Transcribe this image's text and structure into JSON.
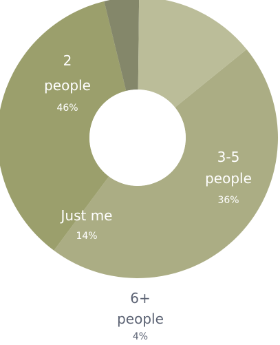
{
  "chart_data": {
    "type": "pie",
    "donut": true,
    "title": "",
    "slices": [
      {
        "label_lines": [
          "2",
          "people"
        ],
        "value": 46,
        "pct_text": "46%",
        "color": "#abad84"
      },
      {
        "label_lines": [
          "3-5",
          "people"
        ],
        "value": 36,
        "pct_text": "36%",
        "color": "#9b9f6c"
      },
      {
        "label_lines": [
          "6+",
          "people"
        ],
        "value": 4,
        "pct_text": "4%",
        "color": "#84876a"
      },
      {
        "label_lines": [
          "Just me"
        ],
        "value": 14,
        "pct_text": "14%",
        "color": "#bbbd99"
      }
    ],
    "label_color_inside": "#ffffff",
    "label_color_outside": "#5b6273"
  }
}
